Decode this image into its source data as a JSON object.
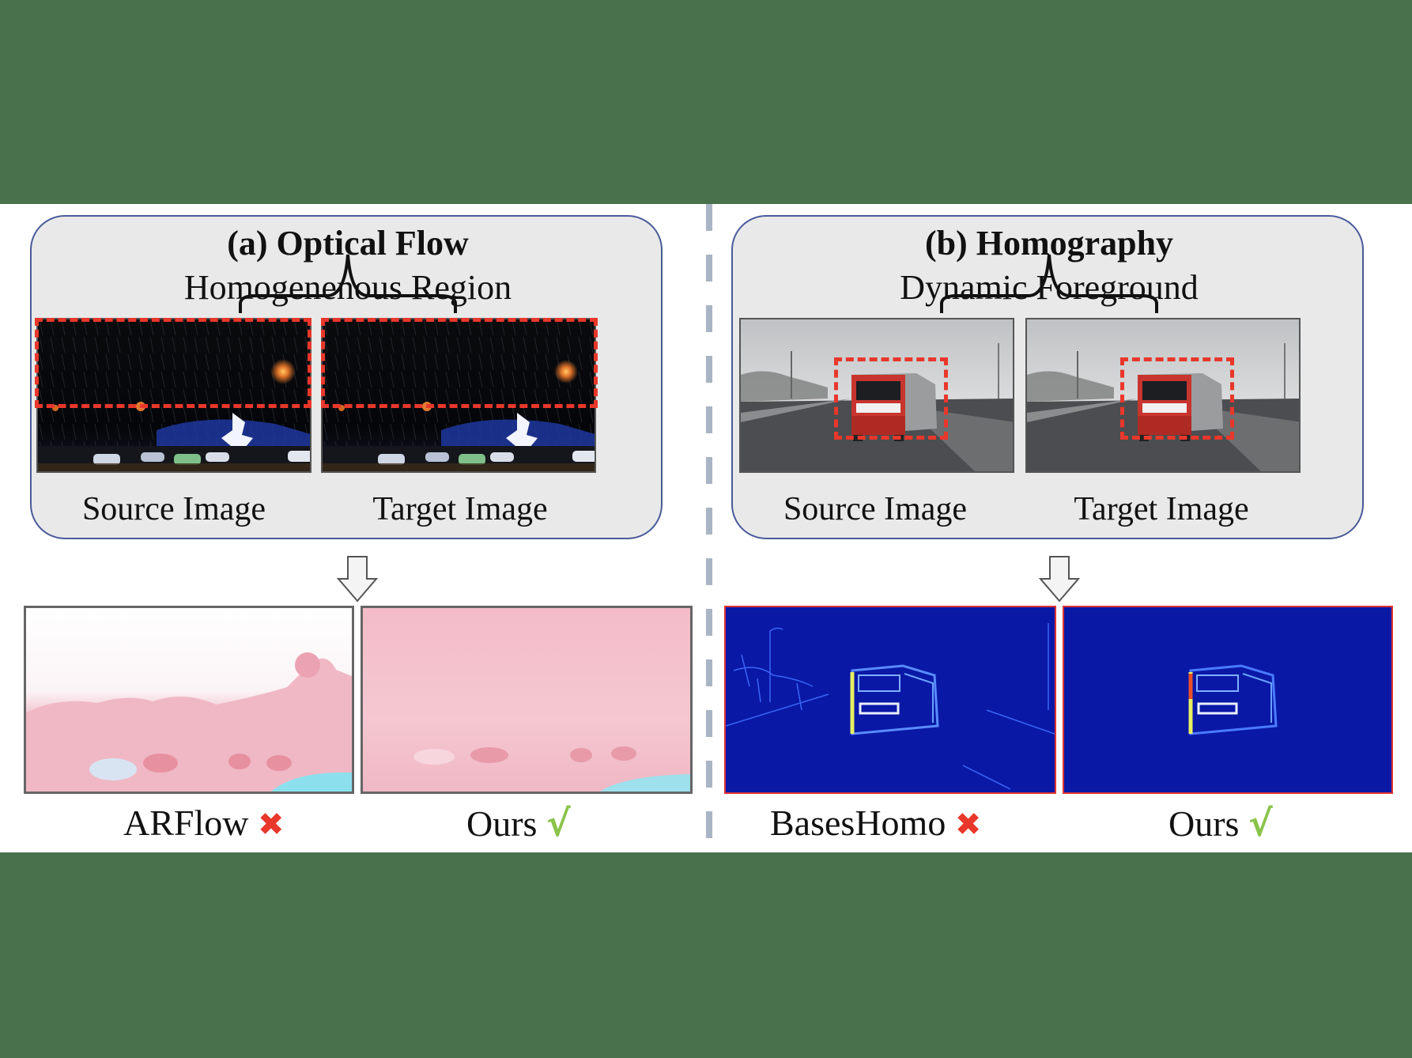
{
  "panels": {
    "a": {
      "title": "(a) Optical Flow",
      "subtitle": "Homogenenous Region",
      "source_caption": "Source Image",
      "target_caption": "Target Image"
    },
    "b": {
      "title": "(b) Homography",
      "subtitle": "Dynamic Foreground",
      "source_caption": "Source Image",
      "target_caption": "Target Image"
    }
  },
  "results": {
    "a_baseline": "ARFlow",
    "a_ours": "Ours",
    "b_baseline": "BasesHomo",
    "b_ours": "Ours"
  },
  "colors": {
    "background": "#48714c",
    "panel_fill": "#e9e9e9",
    "panel_border": "#4a5a9a",
    "dash_red": "#e8372b",
    "check_green": "#8bc34a",
    "heatmap_blue": "#0a1aa8"
  },
  "icons": {
    "fail": "cross-mark-icon",
    "success": "check-mark-icon"
  }
}
